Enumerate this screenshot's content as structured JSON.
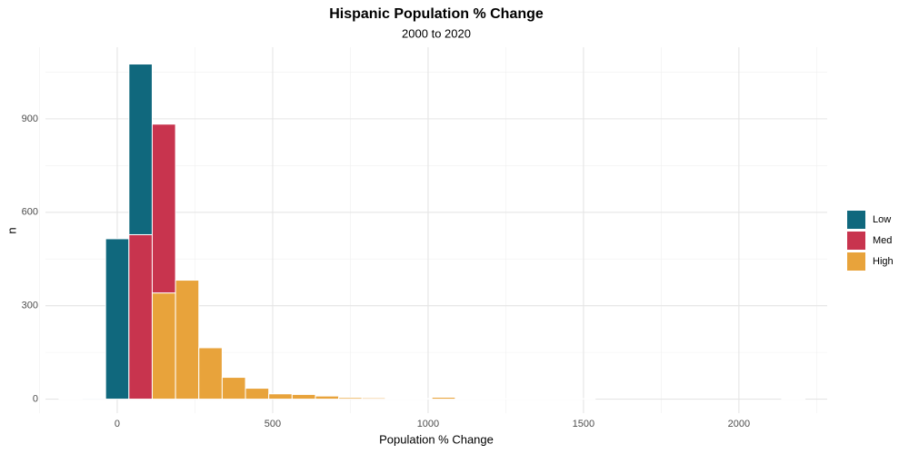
{
  "chart_data": {
    "type": "histogram",
    "title": "Hispanic Population % Change",
    "subtitle": "2000 to 2020",
    "x_label": "Population % Change",
    "y_label": "n",
    "bins": [
      -187.5,
      -112.5,
      -37.5,
      37.5,
      112.5,
      187.5,
      262.5,
      337.5,
      412.5,
      487.5,
      562.5,
      637.5,
      712.5,
      787.5,
      862.5,
      937.5,
      1012.5,
      1087.5,
      1162.5,
      1237.5,
      1312.5,
      1387.5,
      1462.5,
      1537.5,
      1612.5,
      1687.5,
      1762.5,
      1837.5,
      1912.5,
      1987.5,
      2062.5,
      2137.5,
      2212.5
    ],
    "series": [
      {
        "name": "Low",
        "color": "#10687d",
        "values": [
          2,
          3,
          515,
          548,
          0,
          0,
          0,
          0,
          0,
          0,
          0,
          0,
          0,
          0,
          0,
          0,
          0,
          0,
          0,
          0,
          0,
          0,
          0,
          0,
          0,
          0,
          0,
          0,
          0,
          0,
          0,
          2
        ]
      },
      {
        "name": "Med",
        "color": "#c8344e",
        "values": [
          0,
          0,
          0,
          528,
          542,
          0,
          0,
          0,
          0,
          0,
          0,
          0,
          0,
          0,
          0,
          0,
          0,
          0,
          0,
          0,
          0,
          0,
          0,
          0,
          0,
          0,
          0,
          0,
          0,
          0,
          0,
          0
        ]
      },
      {
        "name": "High",
        "color": "#e8a33b",
        "values": [
          0,
          0,
          0,
          0,
          341,
          382,
          165,
          70,
          35,
          17,
          15,
          10,
          5,
          4,
          2,
          2,
          6,
          1,
          1,
          1,
          1,
          1,
          1,
          0,
          0,
          0,
          0,
          0,
          0,
          0,
          0,
          0
        ]
      }
    ],
    "xlim": [
      -231,
      2284
    ],
    "xticks": [
      0,
      500,
      1000,
      1500,
      2000
    ],
    "x_minor_gridlines": [
      -250,
      250,
      750,
      1250,
      1750,
      2250
    ],
    "ylim": [
      -45,
      1130
    ],
    "yticks": [
      0,
      300,
      600,
      900
    ],
    "y_minor_gridlines": [
      150,
      450,
      750,
      1050
    ],
    "grid": true,
    "legend_position": "right"
  }
}
